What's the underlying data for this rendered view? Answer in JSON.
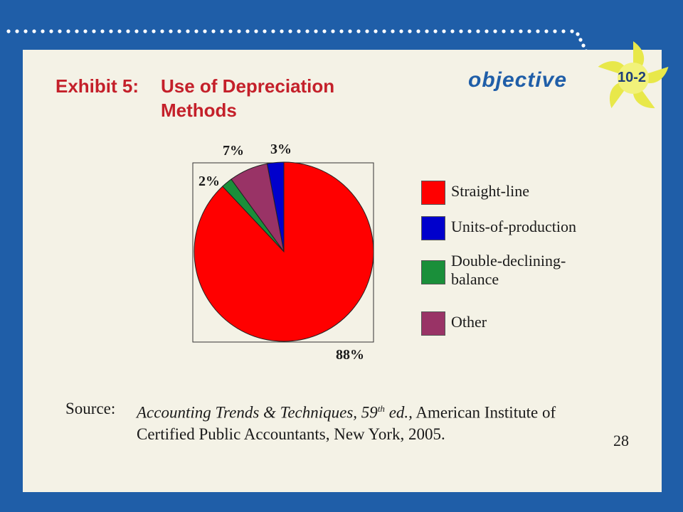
{
  "slide": {
    "title_prefix": "Exhibit 5:",
    "title_main": "Use of Depreciation Methods",
    "objective_word": "objective",
    "objective_number": "10-2",
    "page_number": "28",
    "colors": {
      "background": "#1f5ea8",
      "panel": "#f4f2e6",
      "title": "#c4202a",
      "objective": "#1f5ea8",
      "badge": "#e8e84a"
    }
  },
  "chart_data": {
    "type": "pie",
    "title": "",
    "slices": [
      {
        "name": "Straight-line",
        "value": 88,
        "label": "88%",
        "color": "#ff0000"
      },
      {
        "name": "Units-of-production",
        "value": 3,
        "label": "3%",
        "color": "#0000cc"
      },
      {
        "name": "Double-declining-balance",
        "value": 2,
        "label": "2%",
        "color": "#1a8f3a"
      },
      {
        "name": "Other",
        "value": 7,
        "label": "7%",
        "color": "#993366"
      }
    ],
    "legend": {
      "placement": "right",
      "entries": [
        "Straight-line",
        "Units-of-production",
        "Double-declining-balance",
        "Other"
      ],
      "display_labels": [
        "Straight-line",
        "Units-of-production",
        "Double-declining- balance",
        "Other"
      ]
    }
  },
  "source": {
    "label": "Source:",
    "italic_text": "Accounting Trends & Techniques, 59",
    "superscript": "th",
    "italic_suffix": " ed.,",
    "plain_text": " American Institute of Certified Public Accountants, New York, 2005."
  }
}
